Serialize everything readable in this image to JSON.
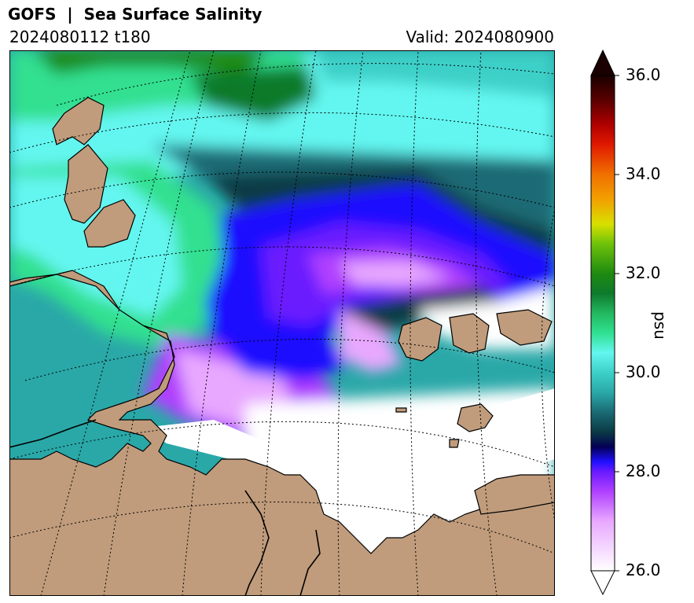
{
  "header": {
    "title": "GOFS  |  Sea Surface Salinity",
    "run": "2024080112 t180",
    "valid": "Valid: 2024080900"
  },
  "colorbar": {
    "units": "psu",
    "min": 26.0,
    "max": 36.0,
    "ticks": [
      "26.0",
      "28.0",
      "30.0",
      "32.0",
      "34.0",
      "36.0"
    ],
    "stops": [
      {
        "v": 26.0,
        "c": "#ffffff"
      },
      {
        "v": 27.0,
        "c": "#e8a8ff"
      },
      {
        "v": 27.6,
        "c": "#b040ff"
      },
      {
        "v": 28.0,
        "c": "#6a1aff"
      },
      {
        "v": 28.2,
        "c": "#1f10ff"
      },
      {
        "v": 28.5,
        "c": "#040055"
      },
      {
        "v": 28.8,
        "c": "#0a3a44"
      },
      {
        "v": 29.2,
        "c": "#1b6a74"
      },
      {
        "v": 29.6,
        "c": "#2aa8a8"
      },
      {
        "v": 30.0,
        "c": "#3cd0c8"
      },
      {
        "v": 30.4,
        "c": "#63f6f0"
      },
      {
        "v": 30.8,
        "c": "#30e090"
      },
      {
        "v": 31.2,
        "c": "#22b860"
      },
      {
        "v": 31.6,
        "c": "#0f7a2c"
      },
      {
        "v": 32.0,
        "c": "#1e8a10"
      },
      {
        "v": 32.6,
        "c": "#6ec20a"
      },
      {
        "v": 33.0,
        "c": "#d8e000"
      },
      {
        "v": 33.5,
        "c": "#f2a000"
      },
      {
        "v": 34.0,
        "c": "#f07000"
      },
      {
        "v": 34.6,
        "c": "#e01a00"
      },
      {
        "v": 35.0,
        "c": "#b00000"
      },
      {
        "v": 35.5,
        "c": "#5a0000"
      },
      {
        "v": 36.0,
        "c": "#1a0000"
      }
    ],
    "extend": "both"
  },
  "map": {
    "land_color": "#c09c7c",
    "coast_color": "#000000",
    "gridlines": "dotted"
  }
}
